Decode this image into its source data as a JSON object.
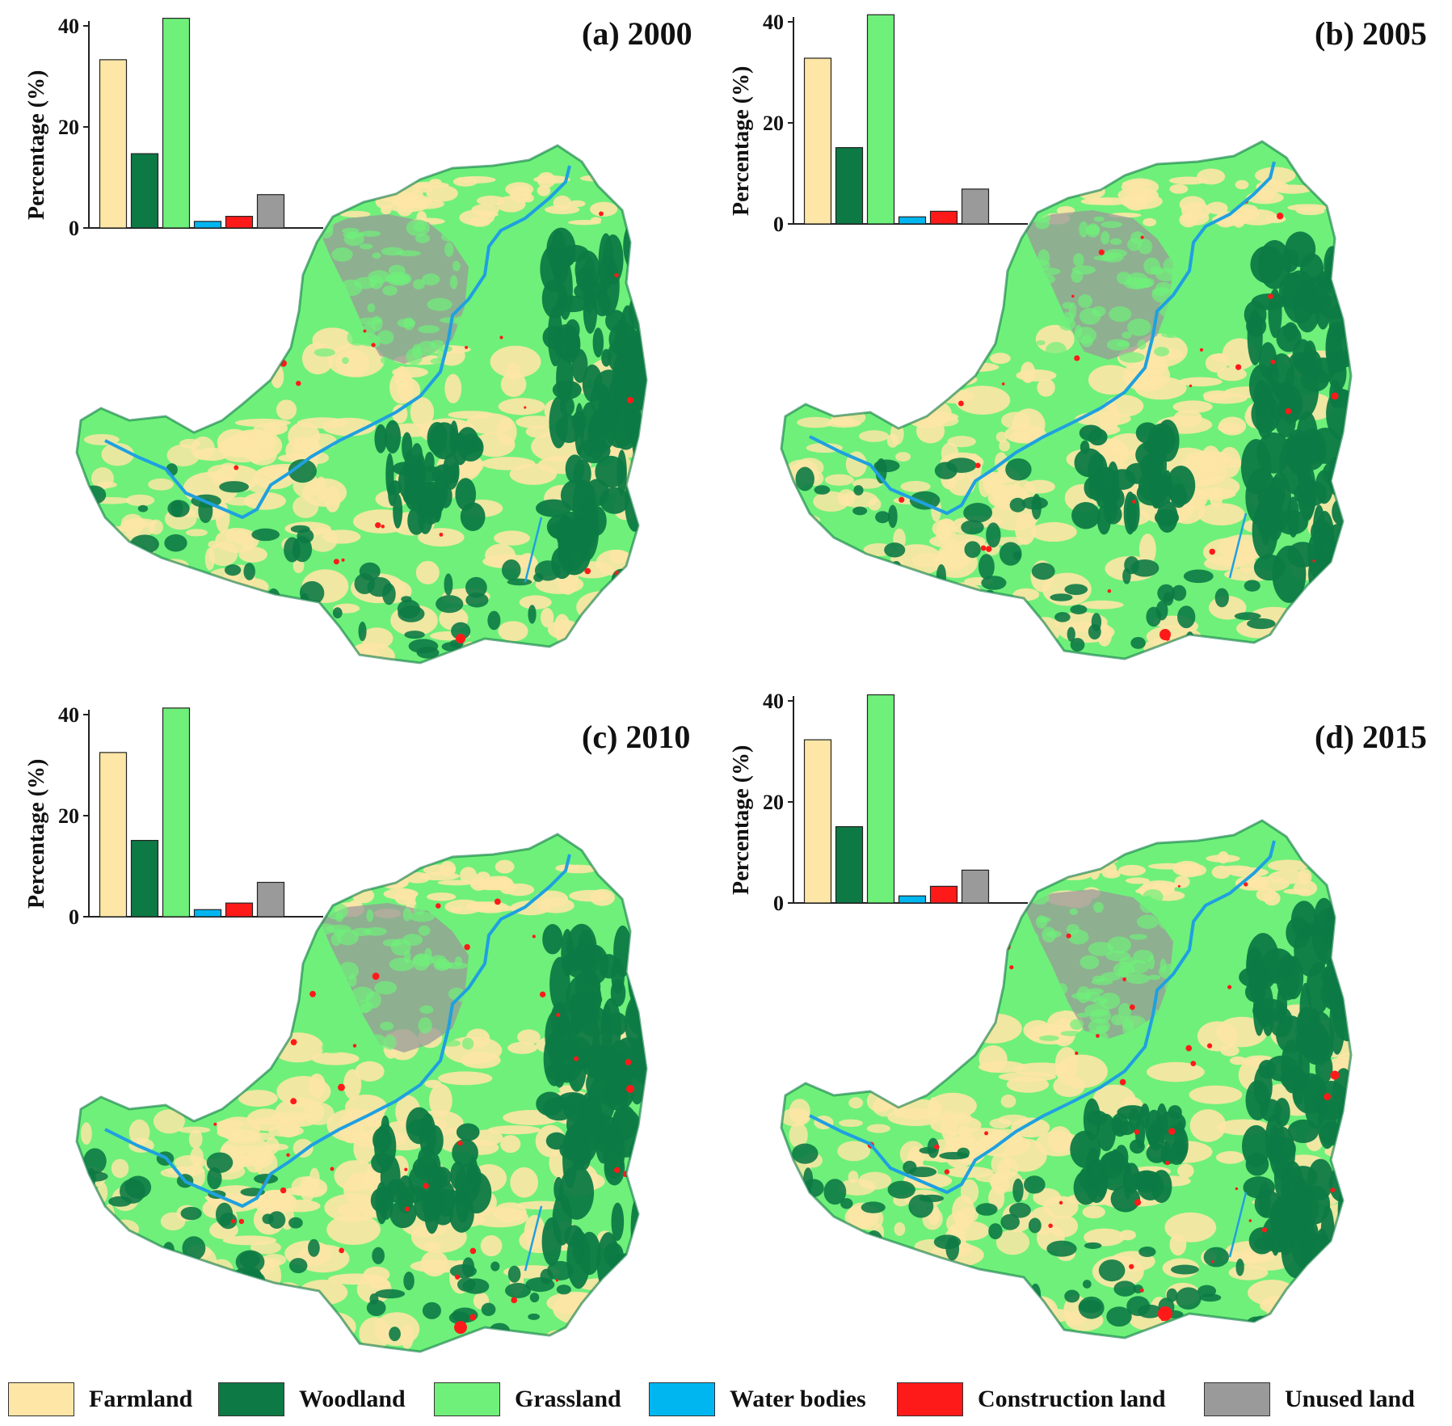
{
  "colors": {
    "farmland": "#fde6a6",
    "woodland": "#0d7a45",
    "grassland": "#6ff07a",
    "water_bodies": "#00b6f0",
    "construction_land": "#ff1a1a",
    "unused_land": "#9a9a9a",
    "river": "#1fa0e0"
  },
  "chart_data": [
    {
      "type": "bar",
      "panel_title": "(a) 2000",
      "ylabel": "Percentage (%)",
      "ylim": [
        0,
        40
      ],
      "yticks": [
        "0",
        "20",
        "40"
      ],
      "categories": [
        "Farmland",
        "Woodland",
        "Grassland",
        "Water bodies",
        "Construction land",
        "Unused land"
      ],
      "values": [
        33.3,
        14.7,
        41.5,
        1.3,
        2.3,
        6.6
      ]
    },
    {
      "type": "bar",
      "panel_title": "(b) 2005",
      "ylabel": "Percentage (%)",
      "ylim": [
        0,
        40
      ],
      "yticks": [
        "0",
        "20",
        "40"
      ],
      "categories": [
        "Farmland",
        "Woodland",
        "Grassland",
        "Water bodies",
        "Construction land",
        "Unused land"
      ],
      "values": [
        32.8,
        15.1,
        41.4,
        1.4,
        2.5,
        6.9
      ]
    },
    {
      "type": "bar",
      "panel_title": "(c) 2010",
      "ylabel": "Percentage (%)",
      "ylim": [
        0,
        40
      ],
      "yticks": [
        "0",
        "20",
        "40"
      ],
      "categories": [
        "Farmland",
        "Woodland",
        "Grassland",
        "Water bodies",
        "Construction land",
        "Unused land"
      ],
      "values": [
        32.5,
        15.1,
        41.3,
        1.4,
        2.7,
        6.8
      ]
    },
    {
      "type": "bar",
      "panel_title": "(d) 2015",
      "ylabel": "Percentage (%)",
      "ylim": [
        0,
        40
      ],
      "yticks": [
        "0",
        "20",
        "40"
      ],
      "categories": [
        "Farmland",
        "Woodland",
        "Grassland",
        "Water bodies",
        "Construction land",
        "Unused land"
      ],
      "values": [
        32.3,
        15.1,
        41.2,
        1.4,
        3.3,
        6.5
      ]
    }
  ],
  "legend": [
    {
      "label": "Farmland",
      "color": "#fde6a6"
    },
    {
      "label": "Woodland",
      "color": "#0d7a45"
    },
    {
      "label": "Grassland",
      "color": "#6ff07a"
    },
    {
      "label": "Water bodies",
      "color": "#00b6f0"
    },
    {
      "label": "Construction land",
      "color": "#ff1a1a"
    },
    {
      "label": "Unused land",
      "color": "#9a9a9a"
    }
  ]
}
